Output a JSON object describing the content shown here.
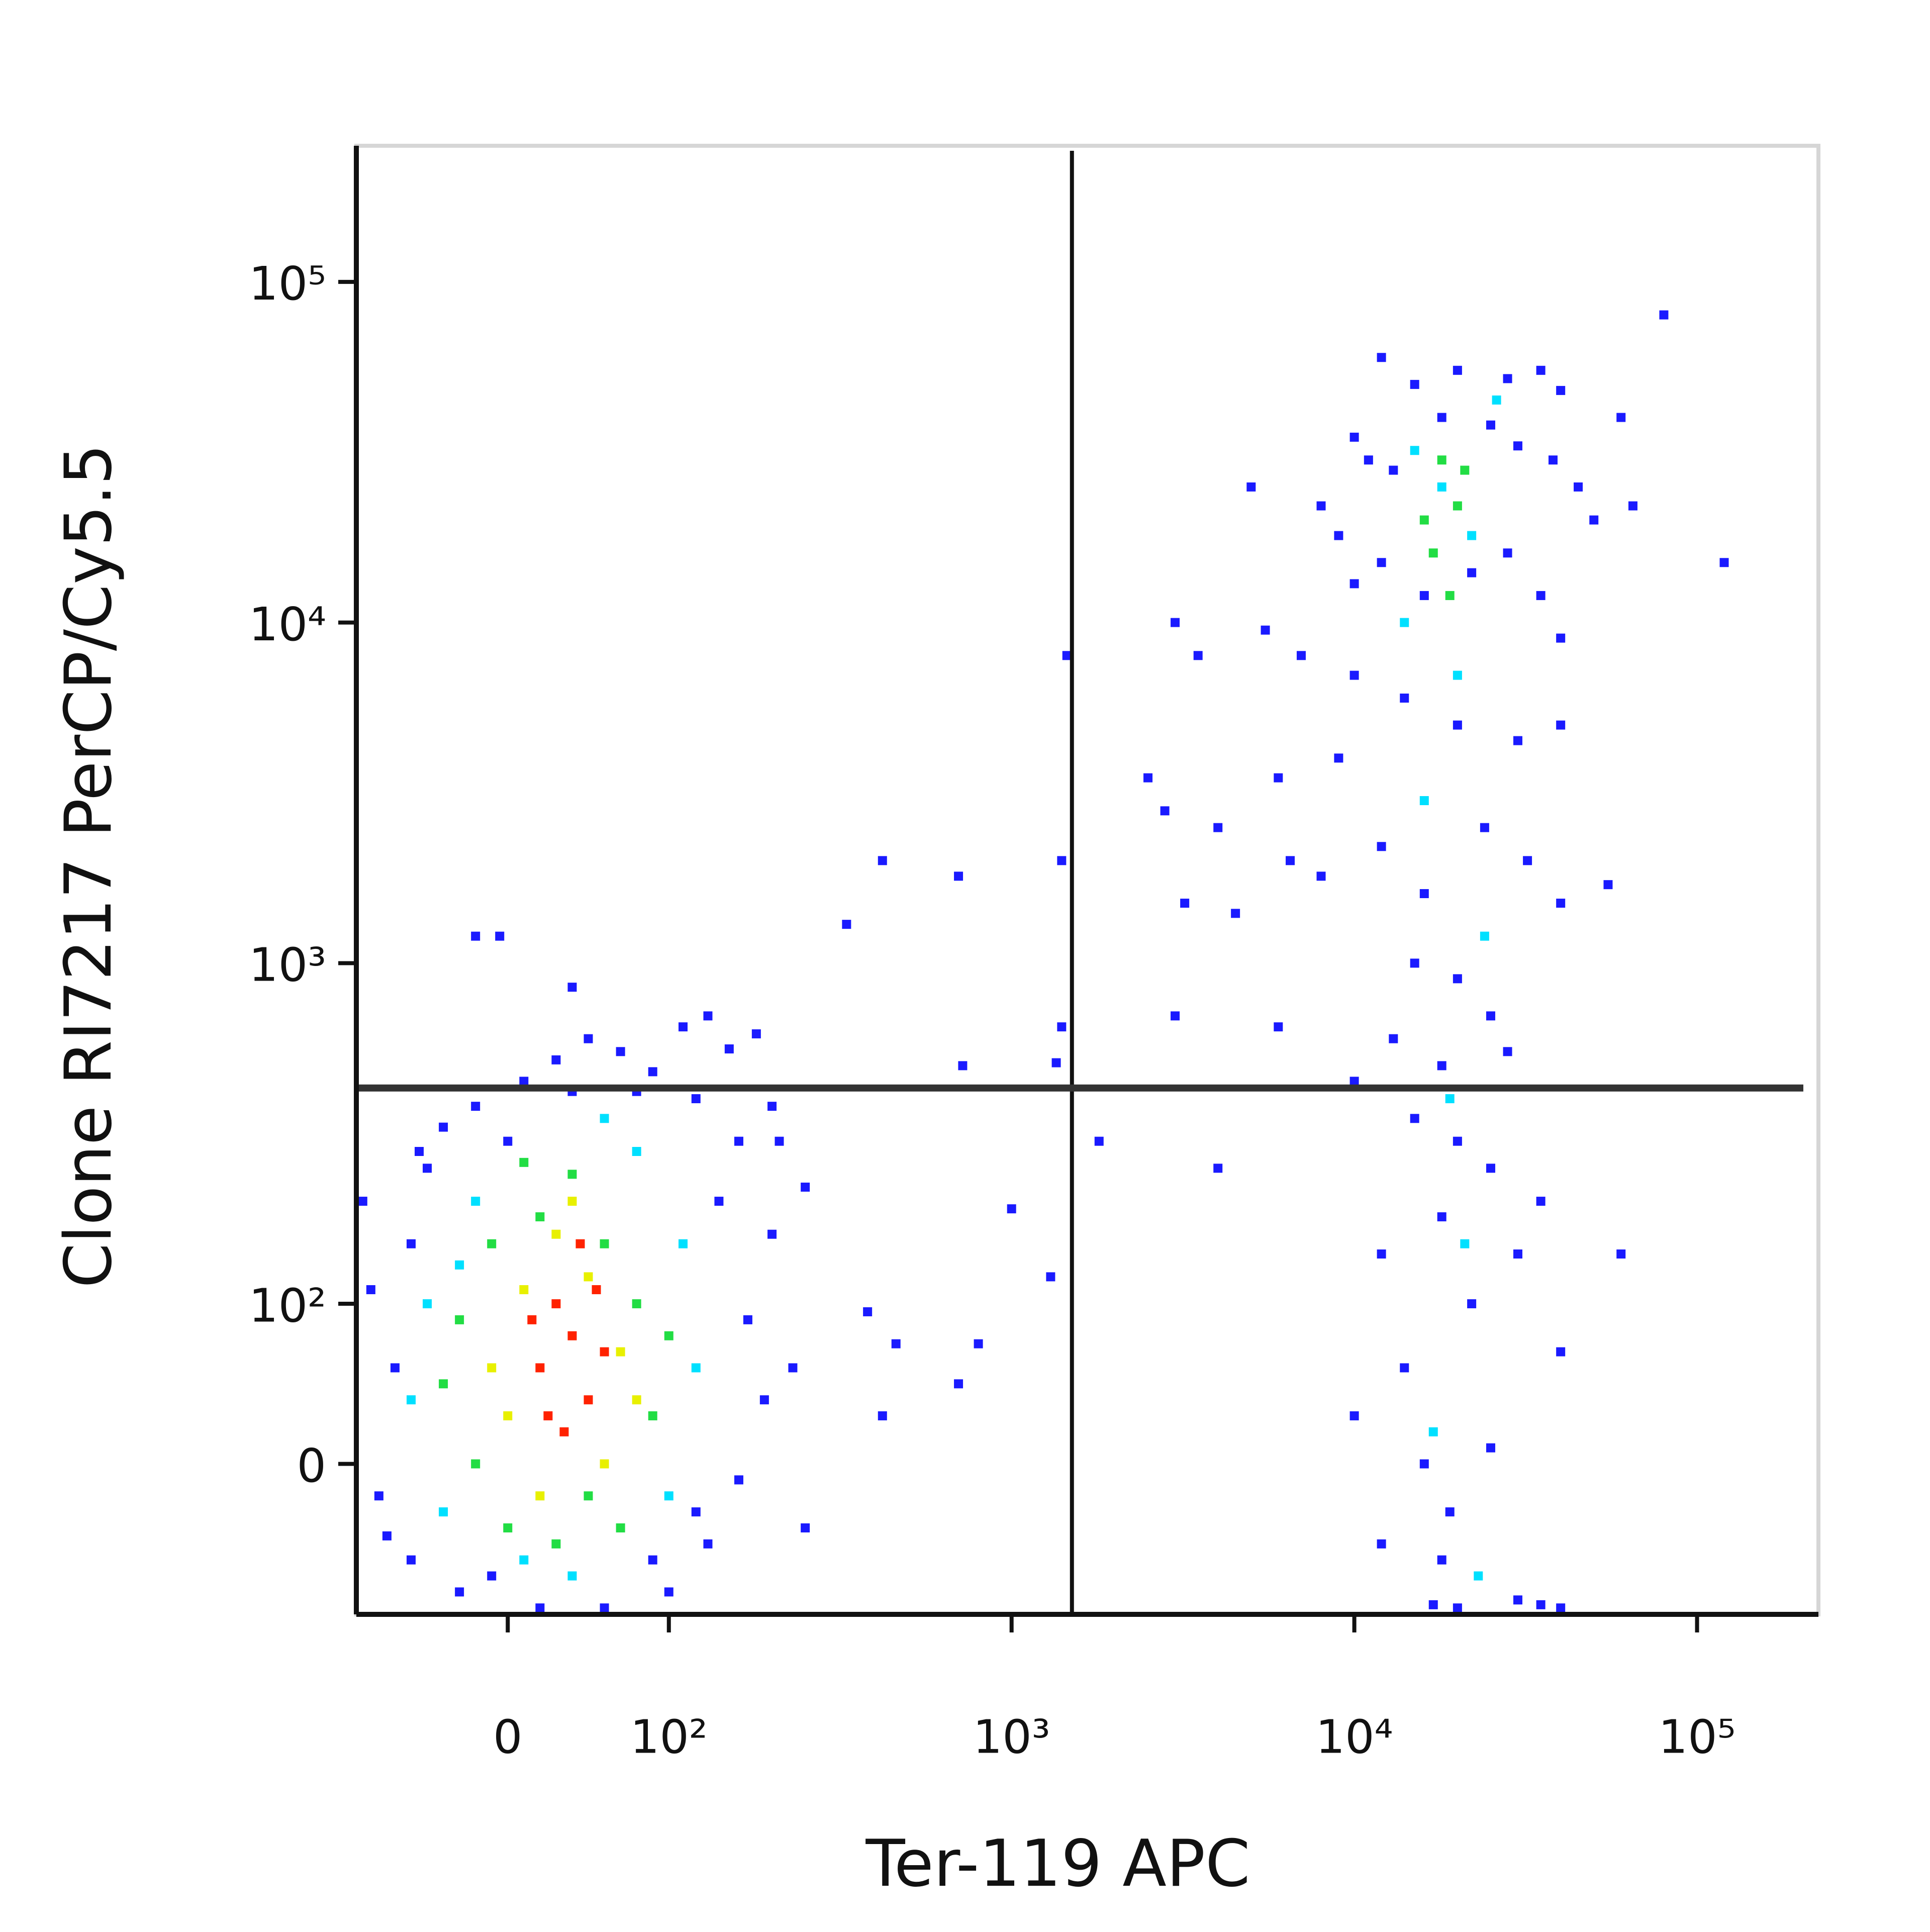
{
  "chart_data": {
    "type": "scatter",
    "x_label": "Ter-119 APC",
    "y_label": "Clone RI7217 PerCP/Cy5.5",
    "xscale": "biexponential",
    "yscale": "biexponential",
    "xlim": [
      -94,
      226000
    ],
    "ylim": [
      -94,
      251000
    ],
    "xticks": [
      0,
      {
        "value": 100,
        "label": "10²"
      },
      {
        "value": 1000,
        "label": "10³"
      },
      {
        "value": 10000,
        "label": "10⁴"
      },
      {
        "value": 100000,
        "label": "10⁵"
      }
    ],
    "yticks": [
      0,
      {
        "value": 100,
        "label": "10²"
      },
      {
        "value": 1000,
        "label": "10³"
      },
      {
        "value": 10000,
        "label": "10⁴"
      },
      {
        "value": 100000,
        "label": "10⁵"
      }
    ],
    "quadrant_gate": {
      "x": 1500,
      "y": 430
    },
    "series": [
      {
        "color": "#1a1aff",
        "x": [
          -80,
          -70,
          -60,
          -85,
          -50,
          -40,
          -30,
          -60,
          -20,
          0,
          10,
          30,
          50,
          70,
          90,
          110,
          130,
          150,
          180,
          200,
          160,
          140,
          200,
          250,
          120,
          170,
          190,
          160,
          130,
          100,
          60,
          20,
          -10,
          90,
          120,
          230,
          250,
          80,
          40,
          -90,
          -75,
          -55,
          210,
          -20,
          -5,
          40,
          420,
          700,
          330,
          380,
          460,
          420,
          700,
          800,
          1000,
          1300,
          720,
          1400,
          1800,
          1450,
          1400,
          1350,
          12000,
          15000,
          20000,
          28000,
          35000,
          40000,
          10000,
          11000,
          13000,
          18000,
          25000,
          30000,
          38000,
          45000,
          60000,
          8000,
          9000,
          12000,
          16000,
          22000,
          28000,
          35000,
          40000,
          50000,
          5000,
          3000,
          3500,
          5500,
          7000,
          10000,
          14000,
          20000,
          30000,
          40000,
          9000,
          6000,
          2500,
          2800,
          3200,
          4000,
          4500,
          6500,
          8000,
          12000,
          16000,
          24000,
          32000,
          40000,
          55000,
          15000,
          20000,
          25000,
          13000,
          18000,
          28000,
          3000,
          6000,
          10000,
          15000,
          20000,
          25000,
          35000,
          4000,
          18000,
          30000,
          60000,
          12000,
          22000,
          14000,
          40000,
          10000,
          16000,
          25000,
          19000,
          12000,
          20000,
          30000,
          40000,
          18000,
          17000,
          35000,
          80000,
          120000,
          65000,
          10000
        ],
        "values": [
          -20,
          60,
          150,
          110,
          250,
          330,
          -80,
          -60,
          380,
          300,
          450,
          520,
          600,
          550,
          480,
          650,
          700,
          560,
          620,
          380,
          300,
          200,
          160,
          220,
          400,
          90,
          40,
          -10,
          -50,
          -80,
          -90,
          -90,
          -70,
          -60,
          -30,
          60,
          -40,
          420,
          420,
          200,
          -45,
          280,
          300,
          1200,
          1200,
          850,
          2000,
          1800,
          1300,
          95,
          75,
          30,
          50,
          75,
          190,
          120,
          500,
          650,
          300,
          8000,
          2000,
          510,
          60000,
          50000,
          55000,
          52000,
          55000,
          48000,
          35000,
          30000,
          28000,
          40000,
          38000,
          33000,
          30000,
          25000,
          40000,
          22000,
          18000,
          15000,
          12000,
          14000,
          16000,
          12000,
          9000,
          20000,
          25000,
          10000,
          8000,
          9500,
          8000,
          7000,
          6000,
          5000,
          4500,
          5000,
          4000,
          3500,
          3500,
          2800,
          1500,
          2500,
          1400,
          2000,
          1800,
          2200,
          1600,
          2500,
          2000,
          1500,
          1700,
          1000,
          900,
          700,
          600,
          500,
          550,
          700,
          650,
          450,
          350,
          300,
          250,
          200,
          250,
          180,
          140,
          140,
          140,
          100,
          60,
          70,
          30,
          0,
          10,
          -30,
          -50,
          -90,
          -85,
          -90,
          -60,
          -88,
          -88,
          80000,
          15000,
          22000,
          13000
        ]
      },
      {
        "color": "#00e0ff",
        "x": [
          -60,
          -40,
          -20,
          10,
          40,
          80,
          110,
          120,
          100,
          -50,
          60,
          -30,
          18000,
          22000,
          14000,
          20000,
          16000,
          24000,
          19000,
          21000,
          17000,
          23000,
          26000,
          15000
        ],
        "values": [
          40,
          -30,
          200,
          -60,
          -70,
          280,
          150,
          60,
          -20,
          100,
          350,
          130,
          25000,
          18000,
          10000,
          7000,
          3000,
          1200,
          400,
          150,
          20,
          -70,
          45000,
          32000
        ]
      },
      {
        "color": "#22dd44",
        "x": [
          -40,
          -20,
          0,
          20,
          40,
          60,
          80,
          90,
          70,
          30,
          -30,
          -10,
          50,
          100,
          10,
          18000,
          20000,
          17000,
          19000,
          16000,
          21000
        ],
        "values": [
          50,
          0,
          -40,
          180,
          240,
          150,
          100,
          30,
          -40,
          -50,
          90,
          150,
          -20,
          80,
          260,
          30000,
          22000,
          16000,
          12000,
          20000,
          28000
        ]
      },
      {
        "color": "#e8f000",
        "x": [
          -10,
          10,
          30,
          50,
          70,
          60,
          20,
          0,
          80,
          40
        ],
        "values": [
          60,
          110,
          160,
          120,
          70,
          0,
          -20,
          30,
          40,
          200
        ]
      },
      {
        "color": "#ff2200",
        "x": [
          20,
          30,
          40,
          50,
          35,
          55,
          25,
          45,
          60,
          15
        ],
        "values": [
          60,
          100,
          80,
          40,
          20,
          110,
          30,
          150,
          70,
          90
        ]
      }
    ]
  }
}
